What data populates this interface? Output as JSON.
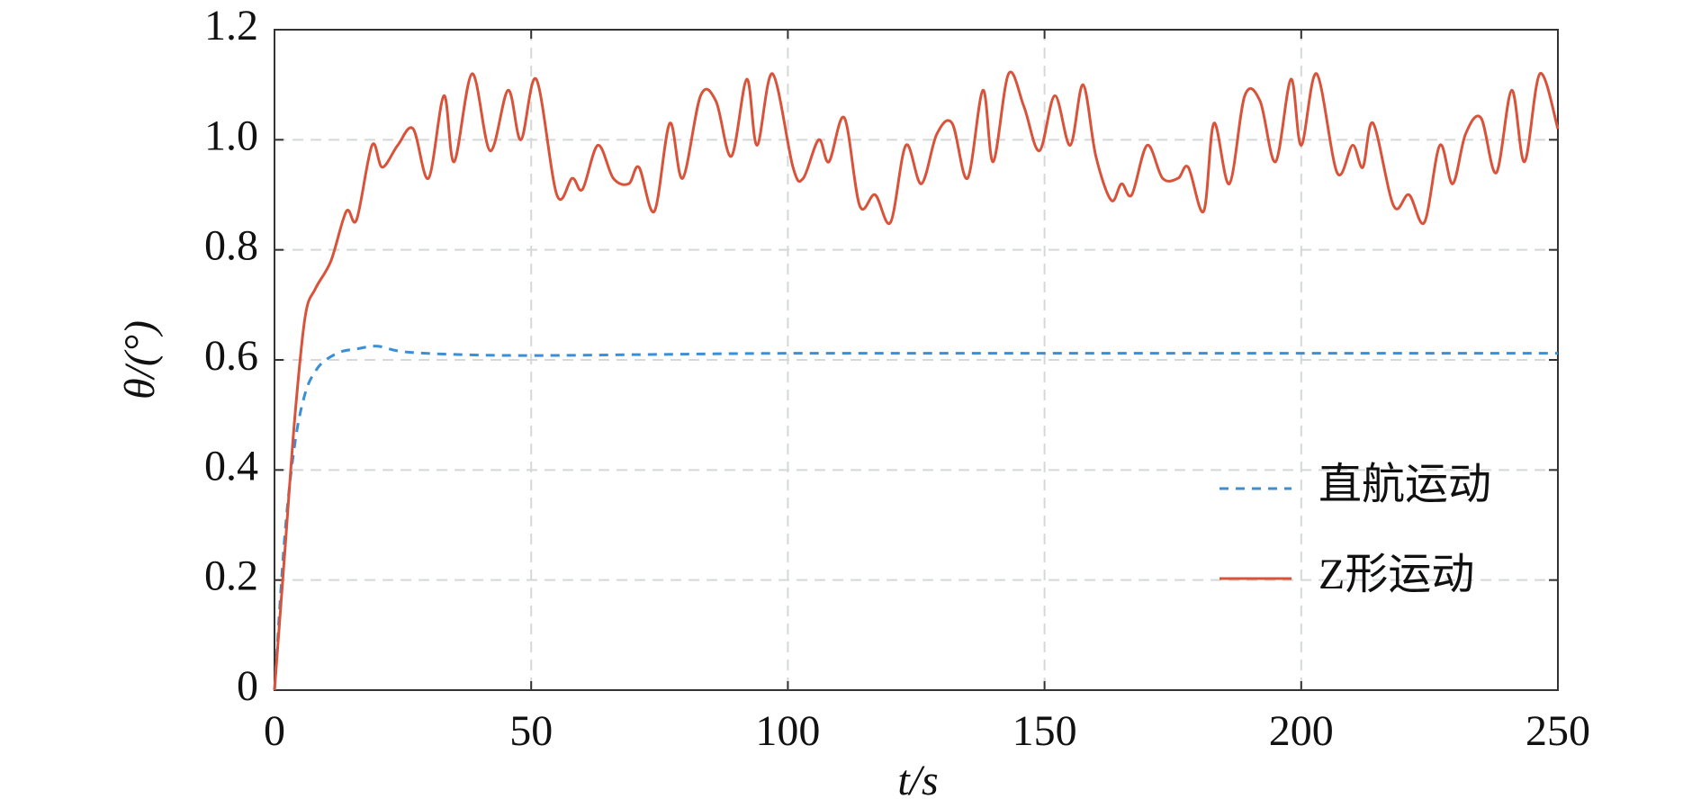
{
  "chart_data": {
    "type": "line",
    "xlabel": "t/s",
    "ylabel": "θ/(°)",
    "xlim": [
      0,
      250
    ],
    "xticks": [
      0,
      50,
      100,
      150,
      200,
      250
    ],
    "ylim": [
      0,
      1.2
    ],
    "yticks": [
      0,
      0.2,
      0.4,
      0.6,
      0.8,
      {
        "value": 1,
        "label": "1.0"
      },
      1.2
    ],
    "grid": true,
    "legend": "lower right",
    "series": [
      {
        "name": "直航运动",
        "color": "#3a8fd6",
        "dash": true,
        "x": [
          0,
          2,
          4,
          6,
          8,
          10,
          13,
          16,
          20,
          25,
          35,
          50,
          75,
          100,
          150,
          200,
          250
        ],
        "values": [
          0,
          0.28,
          0.45,
          0.54,
          0.58,
          0.6,
          0.615,
          0.62,
          0.625,
          0.615,
          0.61,
          0.608,
          0.61,
          0.612,
          0.612,
          0.612,
          0.612
        ]
      },
      {
        "name": "Z形运动",
        "color": "#d9533a",
        "dash": false,
        "x": [
          0,
          2,
          4,
          6,
          8,
          11,
          14,
          16,
          19,
          21,
          24,
          27,
          30,
          33,
          35,
          38.5,
          42,
          45.5,
          48,
          51,
          55,
          58,
          60,
          63,
          66,
          69,
          71,
          74,
          77,
          79.5,
          83,
          86,
          89,
          92,
          94,
          97,
          101,
          103,
          106,
          108,
          111,
          114,
          117,
          120,
          123,
          126,
          129,
          132,
          135,
          138,
          140,
          143,
          146,
          149,
          152,
          155,
          157.5,
          160,
          163,
          165,
          167,
          170,
          173,
          176,
          178,
          181,
          183,
          186,
          189,
          192,
          195,
          198,
          200,
          203,
          207,
          210,
          212,
          214,
          218,
          221,
          224,
          227,
          229.5,
          232,
          235,
          238,
          241,
          243.5,
          246.5,
          250
        ],
        "values": [
          0,
          0.25,
          0.5,
          0.68,
          0.73,
          0.78,
          0.87,
          0.855,
          0.99,
          0.95,
          0.99,
          1.02,
          0.93,
          1.08,
          0.96,
          1.12,
          0.98,
          1.09,
          1.0,
          1.11,
          0.9,
          0.93,
          0.91,
          0.99,
          0.93,
          0.92,
          0.95,
          0.87,
          1.03,
          0.93,
          1.08,
          1.07,
          0.97,
          1.11,
          0.99,
          1.12,
          0.95,
          0.93,
          1.0,
          0.96,
          1.04,
          0.88,
          0.9,
          0.85,
          0.99,
          0.92,
          1.01,
          1.03,
          0.93,
          1.09,
          0.96,
          1.12,
          1.06,
          0.98,
          1.08,
          0.99,
          1.1,
          0.97,
          0.89,
          0.92,
          0.9,
          0.99,
          0.93,
          0.93,
          0.95,
          0.87,
          1.03,
          0.92,
          1.08,
          1.07,
          0.96,
          1.11,
          0.99,
          1.12,
          0.94,
          0.99,
          0.95,
          1.03,
          0.88,
          0.9,
          0.85,
          0.99,
          0.92,
          1.01,
          1.04,
          0.94,
          1.09,
          0.96,
          1.12,
          1.02
        ]
      }
    ]
  }
}
